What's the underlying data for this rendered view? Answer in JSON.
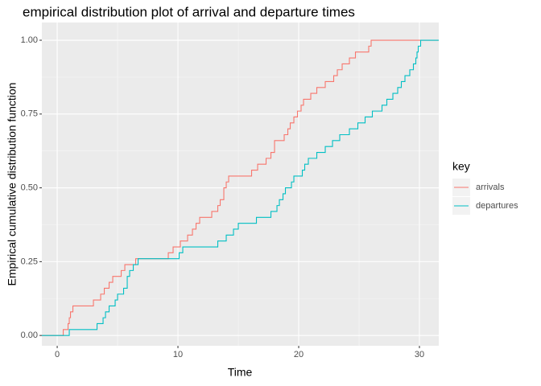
{
  "chart_data": {
    "type": "step",
    "title": "empirical distribution plot of arrival and departure times",
    "x_label": "Time",
    "y_label": "Empirical cumulative distribution function",
    "legend_title": "key",
    "legend_position": "right",
    "grid": true,
    "xlim": [
      -1.27,
      31.6
    ],
    "ylim": [
      -0.035,
      1.06
    ],
    "xticks": [
      0,
      10,
      20,
      30
    ],
    "yticks": [
      {
        "value": 0,
        "label": "0.00"
      },
      {
        "value": 0.25,
        "label": "0.25"
      },
      {
        "value": 0.5,
        "label": "0.50"
      },
      {
        "value": 0.75,
        "label": "0.75"
      },
      {
        "value": 1,
        "label": "1.00"
      }
    ],
    "series": [
      {
        "name": "arrivals",
        "color": "#F8766D",
        "x": [
          0.5,
          0.9,
          1.0,
          1.1,
          1.3,
          3.0,
          3.6,
          3.9,
          4.3,
          4.6,
          5.3,
          5.6,
          6.5,
          9.2,
          9.6,
          10.2,
          10.8,
          11.2,
          11.5,
          11.8,
          12.8,
          13.3,
          13.5,
          13.8,
          14.0,
          14.2,
          16.1,
          16.6,
          17.3,
          17.7,
          18.0,
          18.8,
          19.1,
          19.3,
          19.6,
          19.9,
          20.2,
          20.4,
          21.0,
          21.5,
          22.2,
          22.9,
          23.2,
          23.6,
          24.2,
          24.7,
          25.8,
          26.0
        ],
        "values": [
          0.02,
          0.04,
          0.06,
          0.08,
          0.1,
          0.12,
          0.14,
          0.16,
          0.18,
          0.2,
          0.22,
          0.24,
          0.26,
          0.28,
          0.3,
          0.32,
          0.34,
          0.36,
          0.38,
          0.4,
          0.42,
          0.44,
          0.46,
          0.5,
          0.52,
          0.54,
          0.56,
          0.58,
          0.6,
          0.62,
          0.66,
          0.68,
          0.7,
          0.72,
          0.74,
          0.76,
          0.78,
          0.8,
          0.82,
          0.84,
          0.86,
          0.88,
          0.9,
          0.92,
          0.94,
          0.96,
          0.98,
          1.0
        ]
      },
      {
        "name": "departures",
        "color": "#00BFC4",
        "x": [
          1.0,
          3.3,
          3.8,
          4.0,
          4.3,
          4.8,
          5.0,
          5.5,
          5.8,
          6.0,
          6.3,
          6.7,
          10.1,
          10.4,
          13.3,
          14.0,
          14.6,
          15.0,
          16.5,
          17.7,
          18.2,
          18.4,
          18.7,
          18.9,
          19.4,
          19.6,
          20.3,
          20.5,
          20.8,
          21.5,
          22.2,
          22.8,
          23.4,
          24.2,
          24.9,
          25.5,
          26.1,
          26.9,
          27.3,
          27.8,
          28.2,
          28.5,
          28.8,
          29.2,
          29.5,
          29.7,
          29.8,
          29.9,
          30.1
        ],
        "values": [
          0.02,
          0.04,
          0.06,
          0.08,
          0.1,
          0.12,
          0.14,
          0.16,
          0.2,
          0.22,
          0.24,
          0.26,
          0.28,
          0.3,
          0.32,
          0.34,
          0.36,
          0.38,
          0.4,
          0.42,
          0.44,
          0.46,
          0.48,
          0.5,
          0.52,
          0.54,
          0.56,
          0.58,
          0.6,
          0.62,
          0.64,
          0.66,
          0.68,
          0.7,
          0.72,
          0.74,
          0.76,
          0.78,
          0.8,
          0.82,
          0.84,
          0.86,
          0.88,
          0.9,
          0.92,
          0.94,
          0.96,
          0.98,
          1.0
        ]
      }
    ]
  }
}
